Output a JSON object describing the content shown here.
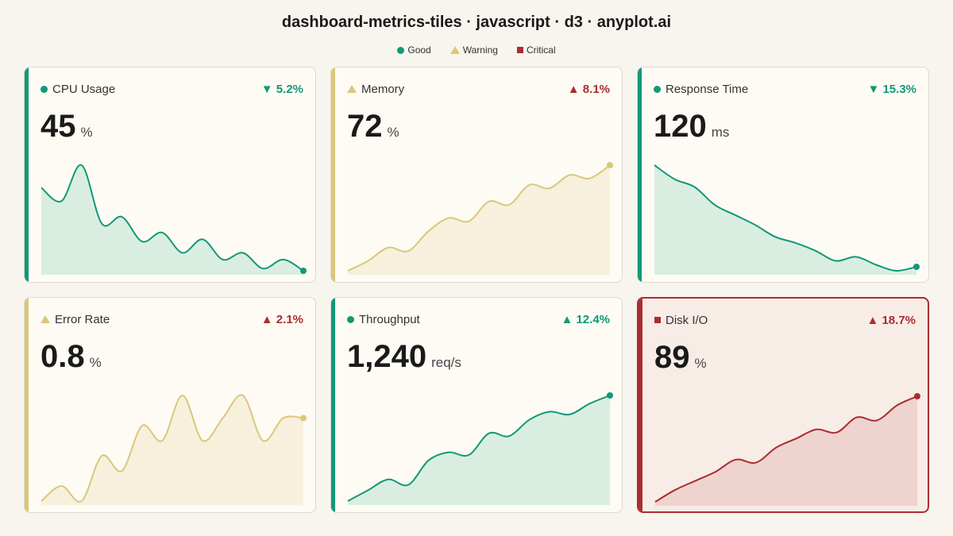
{
  "title": "dashboard-metrics-tiles · javascript · d3 · anyplot.ai",
  "legend": [
    {
      "label": "Good",
      "status": "good"
    },
    {
      "label": "Warning",
      "status": "warning"
    },
    {
      "label": "Critical",
      "status": "critical"
    }
  ],
  "colors": {
    "good": "#129877",
    "warning": "#dbc77a",
    "critical": "#aa2e2e",
    "good_fill": "#d9eee1",
    "warning_fill": "#f6f0dd",
    "critical_fill": "#efd3cf"
  },
  "chart_data": [
    {
      "type": "area",
      "title": "CPU Usage",
      "status": "good",
      "value": "45",
      "unit": "%",
      "delta": "▼ 5.2%",
      "delta_status": "good",
      "values": [
        58,
        52,
        68,
        42,
        45,
        34,
        38,
        29,
        35,
        26,
        29,
        22,
        26,
        21
      ]
    },
    {
      "type": "area",
      "title": "Memory",
      "status": "warning",
      "value": "72",
      "unit": "%",
      "delta": "▲ 8.1%",
      "delta_status": "critical",
      "values": [
        53,
        56,
        60,
        59,
        65,
        69,
        68,
        74,
        73,
        79,
        78,
        82,
        81,
        85
      ]
    },
    {
      "type": "area",
      "title": "Response Time",
      "status": "good",
      "value": "120",
      "unit": "ms",
      "delta": "▼ 15.3%",
      "delta_status": "good",
      "values": [
        175,
        168,
        164,
        155,
        150,
        145,
        139,
        136,
        132,
        127,
        129,
        125,
        122,
        124
      ]
    },
    {
      "type": "area",
      "title": "Error Rate",
      "status": "warning",
      "value": "0.8",
      "unit": "%",
      "delta": "▲ 2.1%",
      "delta_status": "critical",
      "values": [
        0.3,
        0.4,
        0.3,
        0.6,
        0.5,
        0.8,
        0.7,
        1.0,
        0.7,
        0.85,
        1.0,
        0.7,
        0.85,
        0.85
      ]
    },
    {
      "type": "area",
      "title": "Throughput",
      "status": "good",
      "value": "1,240",
      "unit": "req/s",
      "delta": "▲ 12.4%",
      "delta_status": "good",
      "values": [
        860,
        900,
        940,
        920,
        1010,
        1040,
        1030,
        1110,
        1100,
        1160,
        1190,
        1180,
        1220,
        1250
      ]
    },
    {
      "type": "area",
      "title": "Disk I/O",
      "status": "critical",
      "value": "89",
      "unit": "%",
      "delta": "▲ 18.7%",
      "delta_status": "critical",
      "values": [
        62,
        66,
        69,
        72,
        76,
        75,
        80,
        83,
        86,
        85,
        90,
        89,
        94,
        97
      ]
    }
  ]
}
